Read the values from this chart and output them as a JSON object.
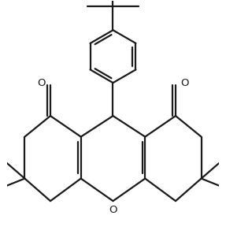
{
  "background": "#ffffff",
  "line_color": "#1a1a1a",
  "line_width": 1.6,
  "fig_width": 2.87,
  "fig_height": 2.97,
  "dpi": 100,
  "xlim": [
    -3.8,
    3.8
  ],
  "ylim": [
    -3.5,
    4.8
  ]
}
